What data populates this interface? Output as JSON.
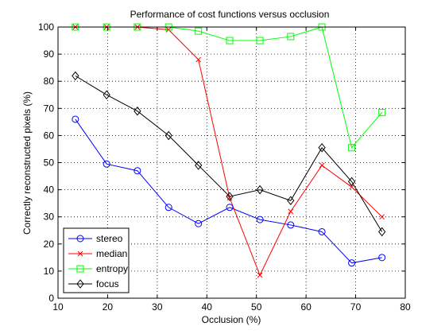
{
  "chart_data": {
    "type": "line",
    "title": "Performance of cost functions versus occlusion",
    "xlabel": "Occlusion (%)",
    "ylabel": "Correctly reconstructed pixels (%)",
    "xlim": [
      10,
      80
    ],
    "ylim": [
      0,
      100
    ],
    "xticks": [
      10,
      20,
      30,
      40,
      50,
      60,
      70,
      80
    ],
    "yticks": [
      0,
      10,
      20,
      30,
      40,
      50,
      60,
      70,
      80,
      90,
      100
    ],
    "grid": true,
    "legend_position": "bottom-left",
    "x": [
      13.5,
      19.8,
      26,
      32.3,
      38.3,
      44.6,
      50.7,
      56.9,
      63.2,
      69.2,
      75.3
    ],
    "series": [
      {
        "name": "stereo",
        "color": "#0000ff",
        "marker": "circle",
        "values": [
          66,
          49.5,
          47,
          33.5,
          27.5,
          33.5,
          29,
          27,
          24.5,
          13,
          15
        ]
      },
      {
        "name": "median",
        "color": "#ff0000",
        "marker": "x",
        "values": [
          100,
          100,
          100,
          99,
          88,
          37,
          8.5,
          32,
          49,
          41,
          30
        ]
      },
      {
        "name": "entropy",
        "color": "#00ff00",
        "marker": "square",
        "values": [
          100,
          100,
          100,
          100,
          98.5,
          95,
          95,
          96.5,
          100,
          55.5,
          68.5
        ]
      },
      {
        "name": "focus",
        "color": "#000000",
        "marker": "diamond",
        "values": [
          82,
          75,
          69,
          60,
          49,
          37.5,
          40,
          36,
          55.5,
          43,
          24.5
        ]
      }
    ]
  }
}
